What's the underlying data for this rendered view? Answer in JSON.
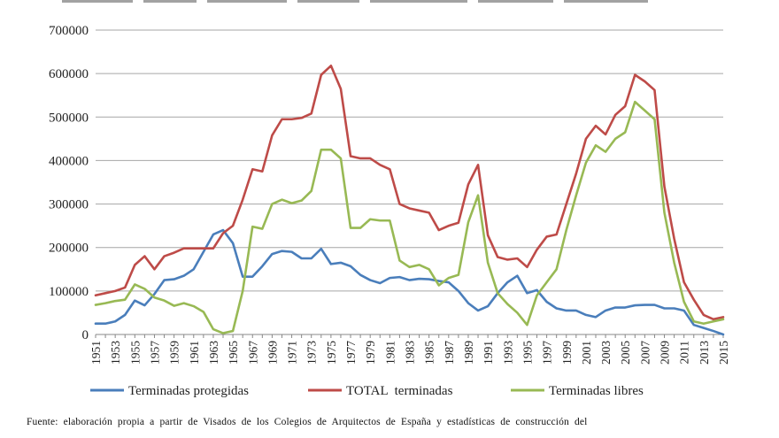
{
  "chart_data": {
    "type": "line",
    "title": "",
    "xlabel": "",
    "ylabel": "",
    "ylim": [
      0,
      700000
    ],
    "yticks": [
      0,
      100000,
      200000,
      300000,
      400000,
      500000,
      600000,
      700000
    ],
    "yticklabels": [
      "0",
      "100000",
      "200000",
      "300000",
      "400000",
      "500000",
      "600000",
      "700000"
    ],
    "xticks": [
      "1951",
      "1953",
      "1955",
      "1957",
      "1959",
      "1961",
      "1963",
      "1965",
      "1967",
      "1969",
      "1971",
      "1973",
      "1975",
      "1977",
      "1979",
      "1981",
      "1983",
      "1985",
      "1987",
      "1989",
      "1991",
      "1993",
      "1995",
      "1997",
      "1999",
      "2001",
      "2003",
      "2005",
      "2007",
      "2009",
      "2011",
      "2013",
      "2015"
    ],
    "x": [
      1951,
      1952,
      1953,
      1954,
      1955,
      1956,
      1957,
      1958,
      1959,
      1960,
      1961,
      1962,
      1963,
      1964,
      1965,
      1966,
      1967,
      1968,
      1969,
      1970,
      1971,
      1972,
      1973,
      1974,
      1975,
      1976,
      1977,
      1978,
      1979,
      1980,
      1981,
      1982,
      1983,
      1984,
      1985,
      1986,
      1987,
      1988,
      1989,
      1990,
      1991,
      1992,
      1993,
      1994,
      1995,
      1996,
      1997,
      1998,
      1999,
      2000,
      2001,
      2002,
      2003,
      2004,
      2005,
      2006,
      2007,
      2008,
      2009,
      2010,
      2011,
      2012,
      2013,
      2014,
      2015
    ],
    "grid": true,
    "legend_position": "bottom",
    "series": [
      {
        "name": "Terminadas protegidas",
        "color": "#4a7ebb",
        "values": [
          25000,
          25000,
          30000,
          45000,
          78000,
          67000,
          93000,
          125000,
          127000,
          135000,
          150000,
          190000,
          230000,
          240000,
          210000,
          133000,
          133000,
          157000,
          185000,
          192000,
          190000,
          175000,
          175000,
          197000,
          162000,
          165000,
          157000,
          137000,
          125000,
          118000,
          130000,
          132000,
          125000,
          128000,
          127000,
          123000,
          120000,
          100000,
          72000,
          55000,
          65000,
          95000,
          120000,
          135000,
          95000,
          102000,
          75000,
          60000,
          55000,
          55000,
          45000,
          40000,
          55000,
          62000,
          62000,
          67000,
          68000,
          68000,
          60000,
          60000,
          55000,
          22000,
          15000,
          8000,
          0
        ]
      },
      {
        "name": "TOTAL  terminadas",
        "color": "#be4b48",
        "values": [
          90000,
          95000,
          100000,
          108000,
          160000,
          180000,
          150000,
          180000,
          188000,
          198000,
          198000,
          198000,
          198000,
          233000,
          250000,
          310000,
          380000,
          375000,
          458000,
          495000,
          495000,
          498000,
          508000,
          597000,
          618000,
          565000,
          410000,
          405000,
          405000,
          390000,
          380000,
          300000,
          290000,
          285000,
          280000,
          240000,
          250000,
          257000,
          345000,
          390000,
          228000,
          178000,
          172000,
          175000,
          155000,
          195000,
          225000,
          230000,
          300000,
          370000,
          450000,
          480000,
          460000,
          505000,
          525000,
          597000,
          582000,
          562000,
          340000,
          220000,
          120000,
          80000,
          45000,
          35000,
          40000
        ]
      },
      {
        "name": "Terminadas libres",
        "color": "#98b954",
        "values": [
          68000,
          72000,
          77000,
          80000,
          115000,
          105000,
          85000,
          78000,
          66000,
          72000,
          65000,
          52000,
          12000,
          3000,
          8000,
          100000,
          248000,
          243000,
          300000,
          310000,
          302000,
          308000,
          330000,
          425000,
          425000,
          405000,
          245000,
          245000,
          265000,
          262000,
          262000,
          170000,
          155000,
          160000,
          150000,
          113000,
          130000,
          137000,
          258000,
          320000,
          165000,
          95000,
          70000,
          50000,
          22000,
          90000,
          120000,
          150000,
          240000,
          320000,
          395000,
          435000,
          420000,
          450000,
          465000,
          535000,
          515000,
          495000,
          280000,
          165000,
          75000,
          30000,
          25000,
          30000,
          35000
        ]
      }
    ]
  },
  "source_text": "Fuente: elaboración propia a partir de Visados de los Colegios de Arquitectos de España y estadísticas de construcción del"
}
